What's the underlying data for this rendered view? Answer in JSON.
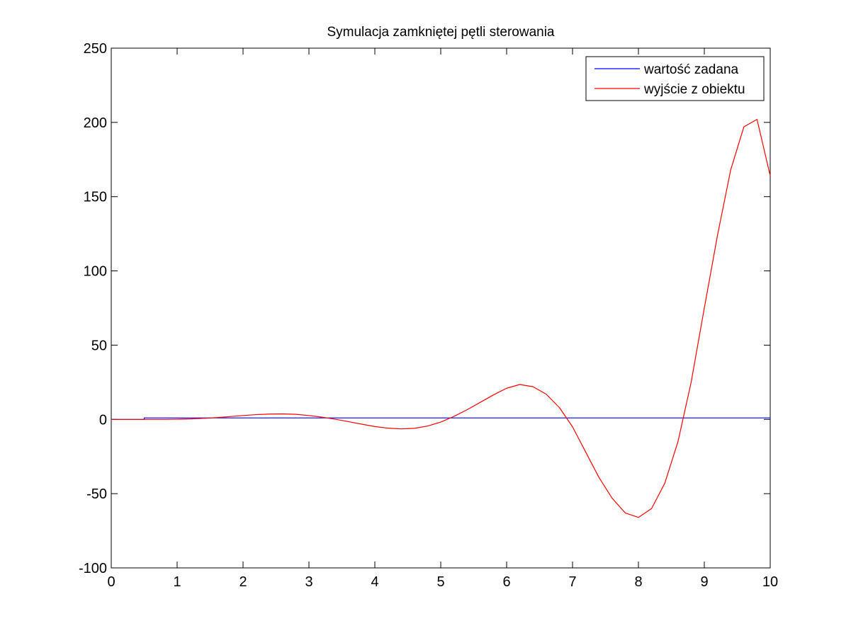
{
  "chart_data": {
    "type": "line",
    "title": "Symulacja zamkniętej pętli sterowania",
    "xlabel": "",
    "ylabel": "",
    "xlim": [
      0,
      10
    ],
    "ylim": [
      -100,
      250
    ],
    "xticks": [
      "0",
      "1",
      "2",
      "3",
      "4",
      "5",
      "6",
      "7",
      "8",
      "9",
      "10"
    ],
    "yticks": [
      "-100",
      "-50",
      "0",
      "50",
      "100",
      "150",
      "200",
      "250"
    ],
    "grid": false,
    "legend_position": "top-right",
    "series": [
      {
        "name": "wartość zadana",
        "color": "#0000ff",
        "x": [
          0,
          0.5,
          0.5,
          10
        ],
        "y": [
          0,
          0,
          1,
          1
        ]
      },
      {
        "name": "wyjście z obiektu",
        "color": "#ff0000",
        "x": [
          0,
          0.2,
          0.4,
          0.6,
          0.8,
          1.0,
          1.2,
          1.4,
          1.6,
          1.8,
          2.0,
          2.2,
          2.4,
          2.6,
          2.8,
          3.0,
          3.2,
          3.4,
          3.6,
          3.8,
          4.0,
          4.2,
          4.4,
          4.6,
          4.8,
          5.0,
          5.2,
          5.4,
          5.6,
          5.8,
          6.0,
          6.2,
          6.4,
          6.6,
          6.8,
          7.0,
          7.2,
          7.4,
          7.6,
          7.8,
          8.0,
          8.2,
          8.4,
          8.6,
          8.8,
          9.0,
          9.2,
          9.4,
          9.6,
          9.8,
          10.0
        ],
        "y": [
          0,
          0,
          0,
          0,
          0,
          0.1,
          0.3,
          0.7,
          1.2,
          1.9,
          2.6,
          3.2,
          3.6,
          3.7,
          3.4,
          2.6,
          1.5,
          0.1,
          -1.5,
          -3.2,
          -4.8,
          -5.9,
          -6.4,
          -6.0,
          -4.5,
          -1.8,
          2.0,
          6.5,
          11.5,
          16.5,
          21.0,
          23.5,
          22.0,
          17.0,
          8.0,
          -5.0,
          -22.0,
          -39.0,
          -53.0,
          -63.0,
          -66.0,
          -60.0,
          -43.0,
          -15.0,
          25.0,
          75.0,
          124.0,
          168.0,
          197.0,
          202.0,
          164.0
        ]
      }
    ]
  }
}
